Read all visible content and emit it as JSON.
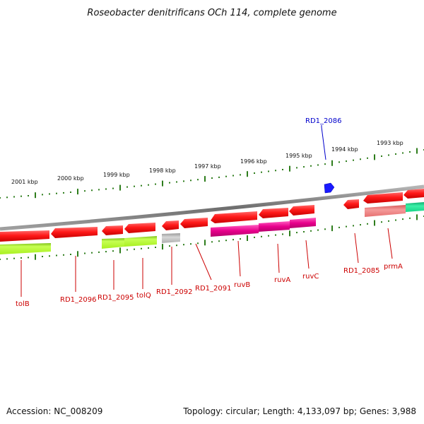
{
  "title": "Roseobacter denitrificans OCh 114, complete genome",
  "footer": {
    "accession": "Accession: NC_008209",
    "summary": "Topology: circular; Length: 4,133,097 bp; Genes: 3,988"
  },
  "colors": {
    "label_red": "#cc0000",
    "label_blue": "#0000cc",
    "tick_green": "#2e7d1c",
    "backbone_gray": "#8a8a8a",
    "gene_red": "#ff1a1a",
    "gene_magenta": "#e8008c",
    "gene_lime": "#b5ff2e",
    "gene_gray": "#bdbdbd",
    "gene_pink": "#ef7f7f",
    "gene_teal": "#1de08f",
    "marker_blue": "#1a1aff"
  },
  "scale_labels": [
    "2001 kbp",
    "2000 kbp",
    "1999 kbp",
    "1998 kbp",
    "1997 kbp",
    "1996 kbp",
    "1995 kbp",
    "1994 kbp",
    "1993 kbp"
  ],
  "highlighted_gene": "RD1_2086",
  "gene_labels": [
    "tolB",
    "RD1_2096",
    "RD1_2095",
    "tolQ",
    "RD1_2092",
    "RD1_2091",
    "ruvB",
    "ruvA",
    "ruvC",
    "RD1_2085",
    "prmA"
  ]
}
